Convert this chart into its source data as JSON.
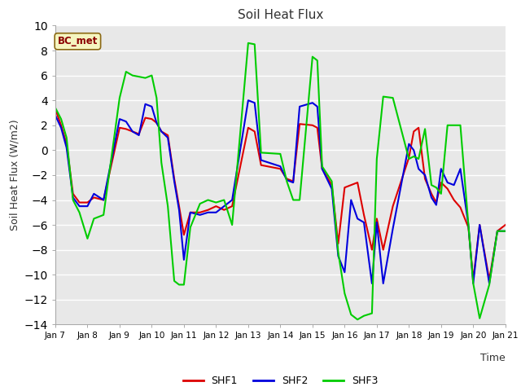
{
  "title": "Soil Heat Flux",
  "ylabel": "Soil Heat Flux (W/m2)",
  "xlabel": "Time",
  "ylim": [
    -14,
    10
  ],
  "plot_bg": "#e8e8e8",
  "fig_bg": "#ffffff",
  "grid_color": "#ffffff",
  "annotation_text": "BC_met",
  "annotation_bg": "#f5f5c0",
  "annotation_border": "#8b6914",
  "legend_labels": [
    "SHF1",
    "SHF2",
    "SHF3"
  ],
  "colors": [
    "#dd0000",
    "#0000dd",
    "#00cc00"
  ],
  "x_tick_labels": [
    "Jan 7",
    "Jan 8",
    "Jan 9",
    "Jan 10",
    "Jan 11",
    "Jan 12",
    "Jan 13",
    "Jan 14",
    "Jan 15",
    "Jan 16",
    "Jan 17",
    "Jan 18",
    "Jan 19",
    "Jan 20",
    "Jan 21"
  ],
  "x": [
    0,
    0.18,
    0.35,
    0.55,
    0.75,
    1.0,
    1.2,
    1.5,
    2.0,
    2.2,
    2.4,
    2.6,
    2.8,
    3.0,
    3.15,
    3.3,
    3.5,
    3.7,
    3.85,
    4.0,
    4.2,
    4.5,
    4.75,
    5.0,
    5.25,
    5.5,
    6.0,
    6.2,
    6.4,
    7.0,
    7.2,
    7.4,
    7.6,
    8.0,
    8.15,
    8.3,
    8.6,
    8.8,
    9.0,
    9.2,
    9.4,
    9.6,
    9.85,
    10.0,
    10.2,
    10.5,
    11.0,
    11.15,
    11.3,
    11.5,
    11.7,
    11.85,
    12.0,
    12.2,
    12.4,
    12.6,
    12.85,
    13.0,
    13.2,
    13.5,
    13.75,
    14.0
  ],
  "shf1": [
    3.3,
    2.0,
    0.5,
    -3.5,
    -4.2,
    -4.2,
    -3.8,
    -4.0,
    1.8,
    1.7,
    1.5,
    1.3,
    2.6,
    2.5,
    2.2,
    1.5,
    1.2,
    -2.3,
    -4.5,
    -6.8,
    -5.0,
    -5.0,
    -4.8,
    -4.5,
    -4.8,
    -4.5,
    1.8,
    1.5,
    -1.2,
    -1.5,
    -2.3,
    -2.5,
    2.1,
    2.0,
    1.8,
    -1.5,
    -2.8,
    -7.5,
    -3.0,
    -2.8,
    -2.6,
    -5.2,
    -8.0,
    -5.5,
    -8.0,
    -4.5,
    -0.6,
    1.5,
    1.8,
    -2.3,
    -3.5,
    -4.2,
    -2.6,
    -3.1,
    -4.0,
    -4.6,
    -6.2,
    -10.4,
    -6.0,
    -10.4,
    -6.5,
    -6.0
  ],
  "shf2": [
    2.8,
    1.8,
    0.2,
    -3.8,
    -4.5,
    -4.5,
    -3.5,
    -4.0,
    2.5,
    2.3,
    1.5,
    1.2,
    3.7,
    3.5,
    2.2,
    1.5,
    1.0,
    -2.5,
    -4.8,
    -8.8,
    -5.0,
    -5.2,
    -5.0,
    -5.0,
    -4.5,
    -4.0,
    4.0,
    3.8,
    -0.8,
    -1.3,
    -2.4,
    -2.6,
    3.5,
    3.8,
    3.5,
    -1.5,
    -3.1,
    -8.5,
    -9.8,
    -4.0,
    -5.5,
    -5.8,
    -10.7,
    -5.8,
    -10.7,
    -6.3,
    0.5,
    0.0,
    -1.5,
    -2.0,
    -3.8,
    -4.4,
    -1.5,
    -2.6,
    -2.8,
    -1.5,
    -6.0,
    -10.7,
    -6.0,
    -10.7,
    -6.5,
    -6.5
  ],
  "shf3": [
    3.4,
    2.5,
    1.0,
    -4.0,
    -5.0,
    -7.1,
    -5.5,
    -5.2,
    4.2,
    6.3,
    6.0,
    5.9,
    5.8,
    6.0,
    4.2,
    -1.0,
    -4.5,
    -10.5,
    -10.8,
    -10.8,
    -6.2,
    -4.3,
    -4.0,
    -4.2,
    -4.0,
    -6.0,
    8.6,
    8.5,
    -0.2,
    -0.3,
    -2.5,
    -4.0,
    -4.0,
    7.5,
    7.2,
    -1.3,
    -2.5,
    -8.2,
    -11.5,
    -13.2,
    -13.6,
    -13.3,
    -13.1,
    -0.7,
    4.3,
    4.2,
    -0.7,
    -0.5,
    -0.7,
    1.7,
    -2.8,
    -3.0,
    -3.5,
    2.0,
    2.0,
    2.0,
    -6.0,
    -10.7,
    -13.5,
    -10.8,
    -6.5,
    -6.5
  ]
}
